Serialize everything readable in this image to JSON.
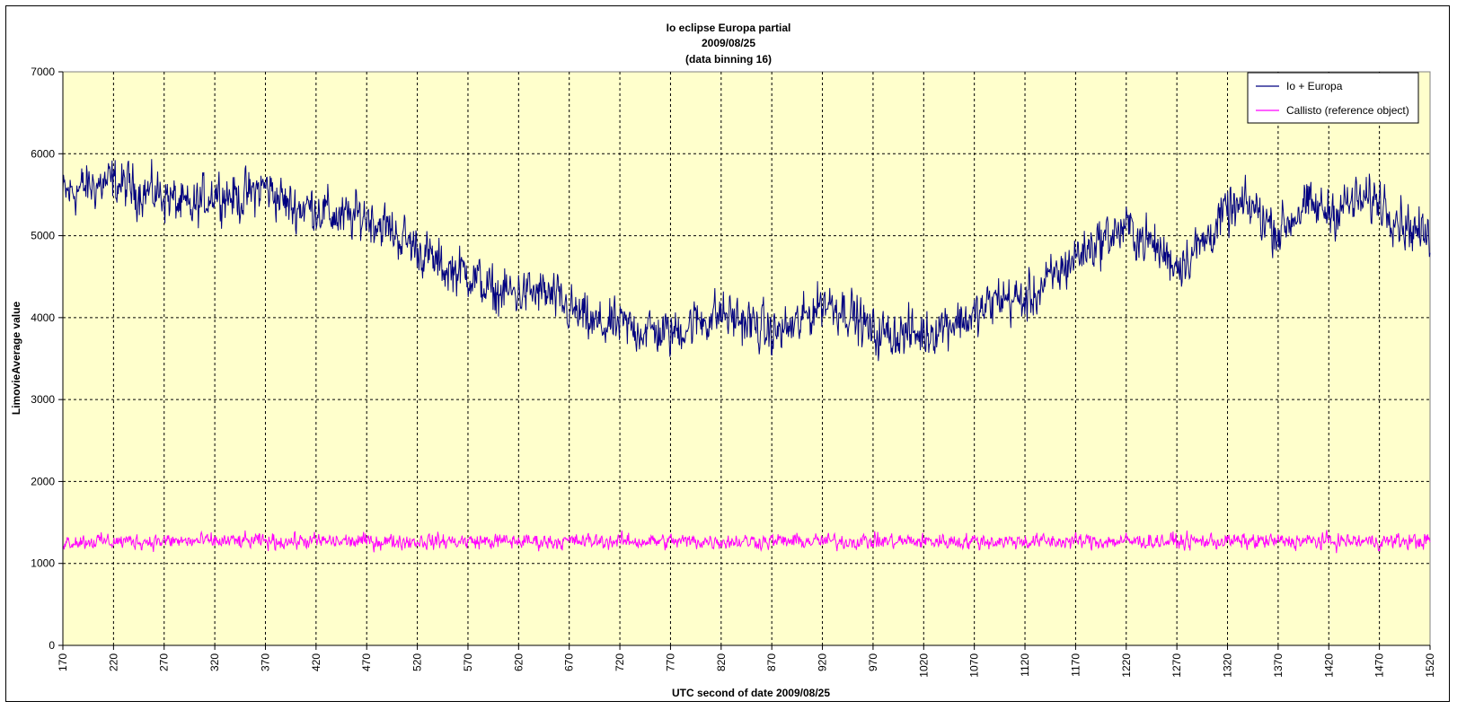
{
  "chart_data": {
    "type": "line",
    "title": [
      "Io eclipse Europa partial",
      "2009/08/25",
      "(data binning 16)"
    ],
    "xlabel": "UTC second of date 2009/08/25",
    "ylabel": "LimovieAverage value",
    "xlim": [
      170,
      1520
    ],
    "ylim": [
      0,
      7000
    ],
    "xticks": [
      170,
      220,
      270,
      320,
      370,
      420,
      470,
      520,
      570,
      620,
      670,
      720,
      770,
      820,
      870,
      920,
      970,
      1020,
      1070,
      1120,
      1170,
      1220,
      1270,
      1320,
      1370,
      1420,
      1470,
      1520
    ],
    "yticks": [
      0,
      1000,
      2000,
      3000,
      4000,
      5000,
      6000,
      7000
    ],
    "grid": true,
    "legend_position": "top-right",
    "plot_background": "#ffffcc",
    "series": [
      {
        "name": "Io + Europa",
        "color": "#000080",
        "noise": 280,
        "x": [
          170,
          195,
          220,
          245,
          270,
          295,
          320,
          345,
          370,
          395,
          420,
          445,
          470,
          495,
          520,
          545,
          570,
          595,
          620,
          645,
          670,
          695,
          720,
          745,
          770,
          795,
          820,
          845,
          870,
          895,
          920,
          945,
          970,
          995,
          1020,
          1045,
          1070,
          1095,
          1120,
          1145,
          1170,
          1195,
          1220,
          1245,
          1270,
          1295,
          1320,
          1345,
          1370,
          1395,
          1420,
          1445,
          1470,
          1495,
          1520
        ],
        "values": [
          5500,
          5600,
          5650,
          5550,
          5500,
          5300,
          5550,
          5450,
          5600,
          5350,
          5350,
          5200,
          5250,
          5050,
          4850,
          4600,
          4550,
          4300,
          4300,
          4300,
          4100,
          3900,
          3900,
          3850,
          3800,
          3950,
          4050,
          3950,
          3800,
          3900,
          4200,
          4100,
          3800,
          3800,
          3800,
          3950,
          4000,
          4250,
          4200,
          4450,
          4750,
          4950,
          5100,
          4900,
          4650,
          4900,
          5300,
          5350,
          5050,
          5350,
          5300,
          5400,
          5450,
          5150,
          4950
        ]
      },
      {
        "name": "Callisto (reference object)",
        "color": "#ff00ff",
        "noise": 90,
        "x": [
          170,
          1520
        ],
        "values": [
          1270,
          1270
        ]
      }
    ]
  }
}
